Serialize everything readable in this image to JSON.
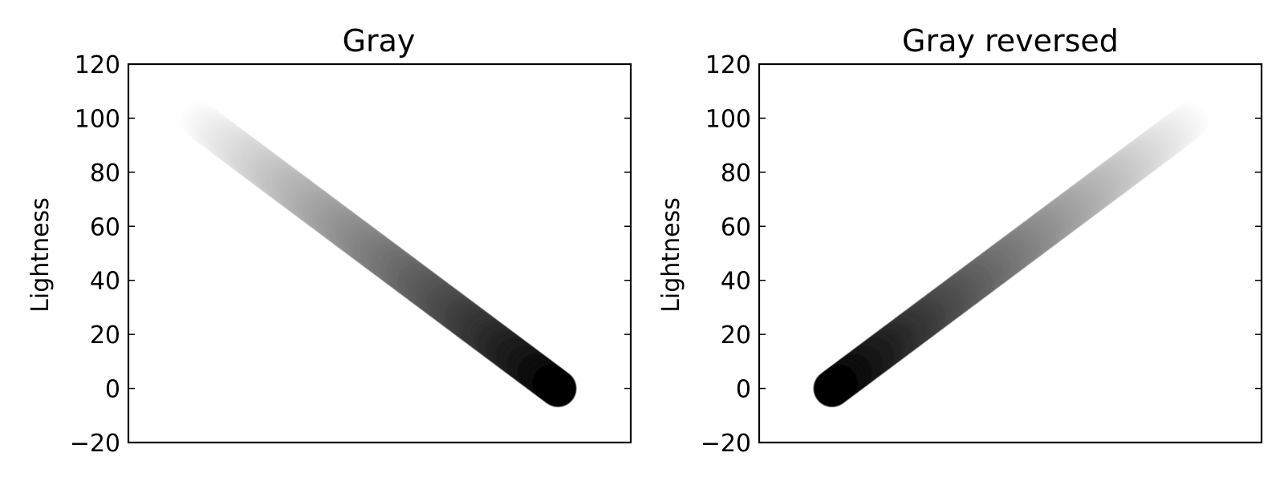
{
  "chart_data": [
    {
      "type": "scatter",
      "title": "Gray",
      "xlabel": "",
      "ylabel": "Lightness",
      "ylim": [
        -20,
        120
      ],
      "yticks": [
        -20,
        0,
        20,
        40,
        60,
        80,
        100,
        120
      ],
      "xticks_visible": false,
      "grid": false,
      "colormap": "gray",
      "colors": {
        "start": "#ffffff",
        "end": "#000000"
      },
      "series": [
        {
          "x": [
            0,
            1
          ],
          "y": [
            100,
            0
          ]
        }
      ]
    },
    {
      "type": "scatter",
      "title": "Gray reversed",
      "xlabel": "",
      "ylabel": "Lightness",
      "ylim": [
        -20,
        120
      ],
      "yticks": [
        -20,
        0,
        20,
        40,
        60,
        80,
        100,
        120
      ],
      "xticks_visible": false,
      "grid": false,
      "colormap": "gray_r",
      "colors": {
        "start": "#000000",
        "end": "#ffffff"
      },
      "series": [
        {
          "x": [
            0,
            1
          ],
          "y": [
            0,
            100
          ]
        }
      ]
    }
  ]
}
